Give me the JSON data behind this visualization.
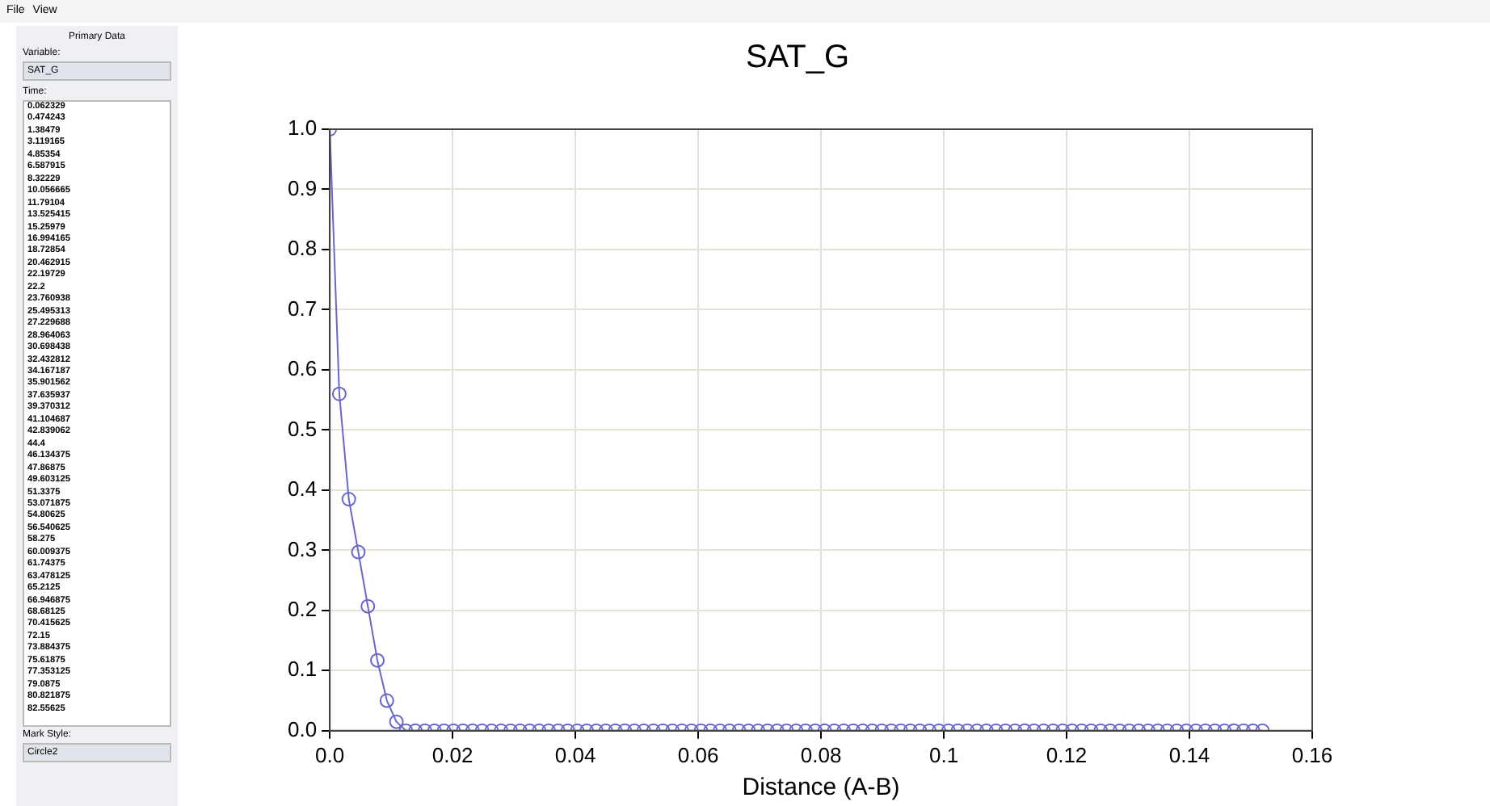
{
  "chart_data": {
    "type": "line",
    "title": "SAT_G",
    "xlabel": "Distance (A-B)",
    "x": [
      0,
      0.00155,
      0.0031,
      0.00465,
      0.0062,
      0.00775,
      0.0093,
      0.01085,
      0.0124,
      0.01395,
      0.0155,
      0.01705,
      0.0186,
      0.02015,
      0.0217,
      0.02325,
      0.0248,
      0.02635,
      0.0279,
      0.02945,
      0.031,
      0.03255,
      0.0341,
      0.03565,
      0.0372,
      0.03875,
      0.0403,
      0.04185,
      0.0434,
      0.04495,
      0.0465,
      0.04805,
      0.0496,
      0.05115,
      0.0527,
      0.05425,
      0.0558,
      0.05735,
      0.0589,
      0.06045,
      0.062,
      0.06355,
      0.0651,
      0.06665,
      0.0682,
      0.06975,
      0.0713,
      0.07285,
      0.0744,
      0.07595,
      0.0775,
      0.07905,
      0.0806,
      0.08215,
      0.0837,
      0.08525,
      0.0868,
      0.08835,
      0.0899,
      0.09145,
      0.093,
      0.09455,
      0.0961,
      0.09765,
      0.0992,
      0.10075,
      0.1023,
      0.10385,
      0.1054,
      0.10695,
      0.1085,
      0.11005,
      0.1116,
      0.11315,
      0.1147,
      0.11625,
      0.1178,
      0.11935,
      0.1209,
      0.12245,
      0.124,
      0.12555,
      0.1271,
      0.12865,
      0.1302,
      0.13175,
      0.1333,
      0.13485,
      0.1364,
      0.13795,
      0.1395,
      0.14105,
      0.1426,
      0.14415,
      0.1457,
      0.14725,
      0.1488,
      0.15035,
      0.1519
    ],
    "series": [
      {
        "color": "#6666cc",
        "values": [
          1,
          0.56,
          0.385,
          0.297,
          0.207,
          0.117,
          0.05,
          0.015,
          0,
          0,
          0,
          0,
          0,
          0,
          0,
          0,
          0,
          0,
          0,
          0,
          0,
          0,
          0,
          0,
          0,
          0,
          0,
          0,
          0,
          0,
          0,
          0,
          0,
          0,
          0,
          0,
          0,
          0,
          0,
          0,
          0,
          0,
          0,
          0,
          0,
          0,
          0,
          0,
          0,
          0,
          0,
          0,
          0,
          0,
          0,
          0,
          0,
          0,
          0,
          0,
          0,
          0,
          0,
          0,
          0,
          0,
          0,
          0,
          0,
          0,
          0,
          0,
          0,
          0,
          0,
          0,
          0,
          0,
          0,
          0,
          0,
          0,
          0,
          0,
          0,
          0,
          0,
          0,
          0,
          0,
          0,
          0,
          0,
          0,
          0,
          0,
          0,
          0,
          0
        ]
      }
    ],
    "xlim": [
      0,
      0.16
    ],
    "xticks": [
      {
        "value": 0,
        "label": "0.0"
      },
      0.02,
      0.04,
      0.06,
      0.08,
      0.1,
      0.12,
      0.14,
      0.16
    ],
    "ylim": [
      0,
      1
    ],
    "yticks": [
      {
        "value": 0,
        "label": "0.0"
      },
      0.1,
      0.2,
      0.3,
      0.4,
      0.5,
      0.6,
      0.7,
      0.8,
      0.9,
      {
        "value": 1,
        "label": "1.0"
      }
    ],
    "grid": true,
    "legend": false,
    "marker": "circle",
    "line_style": "solid",
    "annotations": [
      "File",
      "View",
      "Primary Data",
      "Variable:",
      "SAT_G",
      "Time:",
      "0.062329",
      "0.474243",
      "1.38479",
      "3.119165",
      "4.85354",
      "6.587915",
      "8.32229",
      "10.056665",
      "11.79104",
      "13.525415",
      "15.25979",
      "16.994165",
      "18.72854",
      "20.462915",
      "22.19729",
      "22.2",
      "23.760938",
      "25.495313",
      "27.229688",
      "28.964063",
      "30.698438",
      "32.432812",
      "34.167187",
      "35.901562",
      "37.635937",
      "39.370312",
      "41.104687",
      "42.839062",
      "44.4",
      "46.134375",
      "47.86875",
      "49.603125",
      "51.3375",
      "53.071875",
      "54.80625",
      "56.540625",
      "58.275",
      "60.009375",
      "61.74375",
      "63.478125",
      "65.2125",
      "66.946875",
      "68.68125",
      "70.415625",
      "72.15",
      "73.884375",
      "75.61875",
      "77.353125",
      "79.0875",
      "80.821875",
      "82.55625",
      "Mark Style:",
      "Circle2"
    ]
  }
}
